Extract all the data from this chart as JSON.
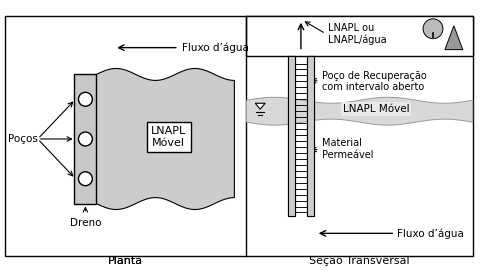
{
  "bg_color": "#ffffff",
  "fig_width": 4.81,
  "fig_height": 2.79,
  "label_planta": "Planta",
  "label_secao": "Seção Transversal",
  "label_fluxo_agua_left": "Fluxo d’água",
  "label_pocos": "Poços",
  "label_dreno": "Dreno",
  "label_lnapl_movel_left": "LNAPL\nMóvel",
  "label_lnapl_ou": "LNAPL ou\nLNAPL/água",
  "label_poco_recuperacao": "Poço de Recuperação\ncom intervalo aberto",
  "label_lnapl_movel_right": "LNAPL Móvel",
  "label_material_permeavl": "Material\nPermeável",
  "label_fluxo_agua_right": "Fluxo d’água",
  "gray_blob": "#cccccc",
  "gray_casing": "#cccccc",
  "gray_perm": "#e8e8e8",
  "gray_lnapl_band": "#d8d8d8"
}
